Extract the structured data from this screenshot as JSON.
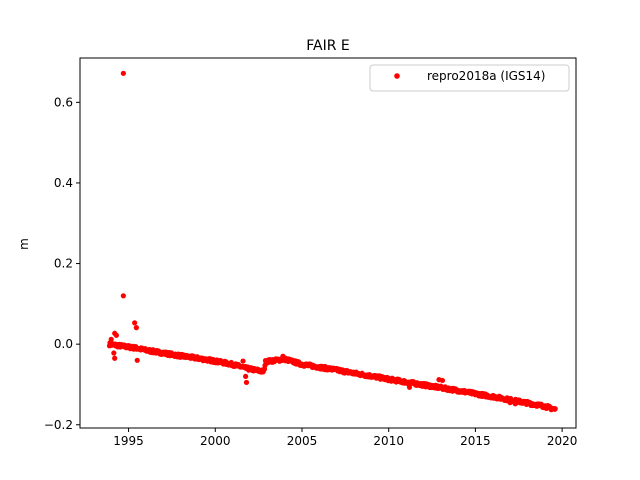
{
  "chart_data": {
    "type": "scatter",
    "title": "FAIR E",
    "xlabel": "",
    "ylabel": "m",
    "xlim": [
      1992.2,
      2020.8
    ],
    "ylim": [
      -0.208,
      0.71
    ],
    "xticks": [
      1995,
      2000,
      2005,
      2010,
      2015,
      2020
    ],
    "yticks": [
      -0.2,
      0.0,
      0.2,
      0.4,
      0.6
    ],
    "ytick_labels": [
      "−0.2",
      "0.0",
      "0.2",
      "0.4",
      "0.6"
    ],
    "grid": false,
    "legend": {
      "position": "upper-right",
      "entries": [
        "repro2018a (IGS14)"
      ]
    },
    "series": [
      {
        "name": "repro2018a (IGS14)",
        "color": "#ff0000",
        "marker": "dot",
        "trend": [
          [
            1993.9,
            0.0
          ],
          [
            1994.5,
            -0.004
          ],
          [
            1995.0,
            -0.007
          ],
          [
            1995.5,
            -0.01
          ],
          [
            1996.0,
            -0.015
          ],
          [
            1997.0,
            -0.022
          ],
          [
            1998.0,
            -0.029
          ],
          [
            1999.0,
            -0.035
          ],
          [
            2000.0,
            -0.042
          ],
          [
            2001.0,
            -0.05
          ],
          [
            2001.8,
            -0.06
          ],
          [
            2002.8,
            -0.068
          ],
          [
            2002.9,
            -0.043
          ],
          [
            2003.5,
            -0.04
          ],
          [
            2004.0,
            -0.037
          ],
          [
            2005.0,
            -0.05
          ],
          [
            2006.0,
            -0.057
          ],
          [
            2007.0,
            -0.064
          ],
          [
            2008.0,
            -0.072
          ],
          [
            2009.0,
            -0.079
          ],
          [
            2010.0,
            -0.087
          ],
          [
            2011.0,
            -0.094
          ],
          [
            2012.0,
            -0.101
          ],
          [
            2013.0,
            -0.108
          ],
          [
            2014.0,
            -0.115
          ],
          [
            2015.0,
            -0.123
          ],
          [
            2016.0,
            -0.13
          ],
          [
            2017.0,
            -0.138
          ],
          [
            2018.0,
            -0.146
          ],
          [
            2019.0,
            -0.154
          ],
          [
            2019.6,
            -0.162
          ]
        ],
        "outliers": [
          [
            1994.7,
            0.672
          ],
          [
            1994.7,
            0.12
          ],
          [
            1995.35,
            0.053
          ],
          [
            1995.45,
            0.041
          ],
          [
            1995.5,
            -0.04
          ],
          [
            1994.0,
            0.012
          ],
          [
            1994.2,
            0.027
          ],
          [
            1994.3,
            0.022
          ],
          [
            1994.15,
            -0.022
          ],
          [
            1994.2,
            -0.035
          ],
          [
            2001.6,
            -0.042
          ],
          [
            2001.7,
            -0.058
          ],
          [
            2001.8,
            -0.095
          ],
          [
            2001.75,
            -0.08
          ],
          [
            2003.9,
            -0.03
          ],
          [
            2012.9,
            -0.088
          ],
          [
            2013.1,
            -0.09
          ],
          [
            2011.2,
            -0.107
          ],
          [
            2014.3,
            -0.117
          ],
          [
            2017.0,
            -0.145
          ],
          [
            2017.3,
            -0.148
          ],
          [
            2018.2,
            -0.152
          ]
        ],
        "spread": 0.004
      }
    ]
  }
}
